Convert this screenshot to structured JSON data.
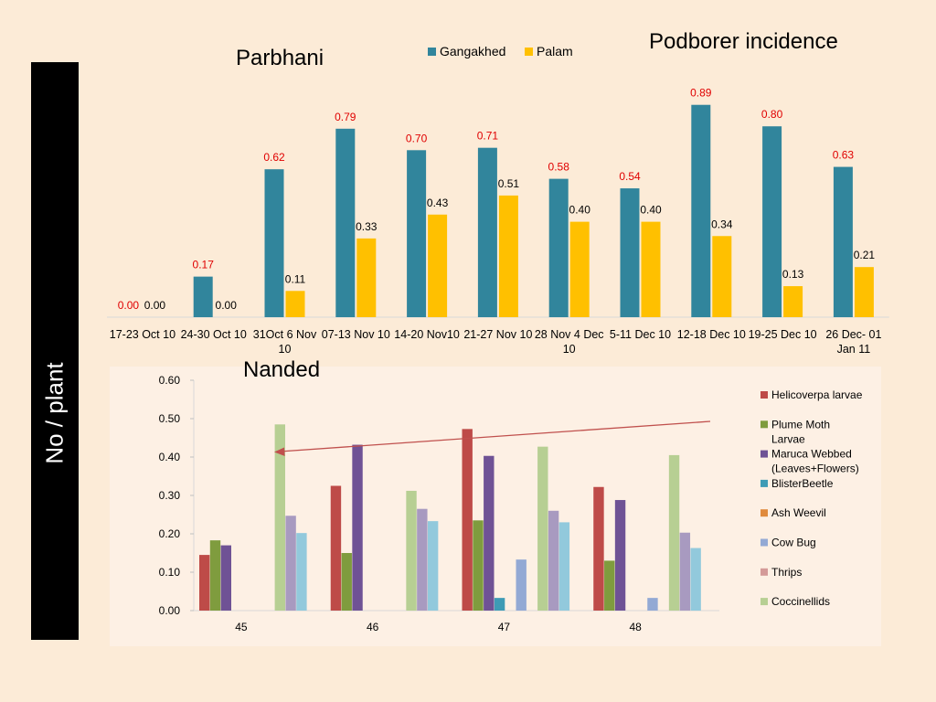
{
  "slide": {
    "title": "Podborer incidence",
    "side_label": "No  / plant"
  },
  "colors": {
    "gangakhed": "#31859c",
    "palam": "#ffc000",
    "value_label_highlight": "#e00000",
    "value_label_normal": "#000000"
  },
  "chart_data": [
    {
      "type": "bar",
      "title": "Parbhani",
      "legend_position": "top",
      "categories": [
        "17-23 Oct 10",
        "24-30 Oct 10",
        "31Oct 6 Nov 10",
        "07-13 Nov 10",
        "14-20 Nov10",
        "21-27 Nov 10",
        "28 Nov 4 Dec 10",
        "5-11 Dec 10",
        "12-18 Dec 10",
        "19-25 Dec 10",
        "26 Dec- 01 Jan 11"
      ],
      "category_lines": [
        [
          "17-23 Oct 10"
        ],
        [
          "24-30 Oct 10"
        ],
        [
          "31Oct 6 Nov",
          "10"
        ],
        [
          "07-13 Nov 10"
        ],
        [
          "14-20 Nov10"
        ],
        [
          "21-27 Nov 10"
        ],
        [
          "28 Nov 4 Dec",
          "10"
        ],
        [
          "5-11 Dec 10"
        ],
        [
          "12-18 Dec 10"
        ],
        [
          "19-25 Dec 10"
        ],
        [
          "26 Dec- 01",
          "Jan 11"
        ]
      ],
      "series": [
        {
          "name": "Gangakhed",
          "values": [
            0.0,
            0.17,
            0.62,
            0.79,
            0.7,
            0.71,
            0.58,
            0.54,
            0.89,
            0.8,
            0.63
          ],
          "labels": [
            "0.00",
            "0.17",
            "0.62",
            "0.79",
            "0.70",
            "0.71",
            "0.58",
            "0.54",
            "0.89",
            "0.80",
            "0.63"
          ]
        },
        {
          "name": "Palam",
          "values": [
            0.0,
            0.0,
            0.11,
            0.33,
            0.43,
            0.51,
            0.4,
            0.4,
            0.34,
            0.13,
            0.21
          ],
          "labels": [
            "0.00",
            "0.00",
            "0.11",
            "0.33",
            "0.43",
            "0.51",
            "0.40",
            "0.40",
            "0.34",
            "0.13",
            "0.21"
          ]
        }
      ],
      "ylim": [
        0,
        1.0
      ],
      "y_axis_shown": false,
      "grid": false
    },
    {
      "type": "bar",
      "title": "Nanded",
      "legend_position": "right",
      "categories": [
        "45",
        "46",
        "47",
        "48"
      ],
      "ylim": [
        0,
        0.6
      ],
      "yticks": [
        0.0,
        0.1,
        0.2,
        0.3,
        0.4,
        0.5,
        0.6
      ],
      "ytick_labels": [
        "0.00",
        "0.10",
        "0.20",
        "0.30",
        "0.40",
        "0.50",
        "0.60"
      ],
      "grid": false,
      "series": [
        {
          "name": "Helicoverpa larvae",
          "legend_lines": [
            "Helicoverpa larvae"
          ],
          "color": "#be4b48",
          "values": [
            0.145,
            0.325,
            0.473,
            0.322
          ]
        },
        {
          "name": "Plume Moth Larvae",
          "legend_lines": [
            "Plume Moth",
            "Larvae"
          ],
          "color": "#7f9c3e",
          "values": [
            0.183,
            0.15,
            0.235,
            0.13
          ]
        },
        {
          "name": "Maruca Webbed (Leaves+Flowers)",
          "legend_lines": [
            "Maruca Webbed",
            "(Leaves+Flowers)"
          ],
          "color": "#6f5295",
          "values": [
            0.17,
            0.432,
            0.403,
            0.288
          ]
        },
        {
          "name": "BlisterBeetle",
          "legend_lines": [
            "BlisterBeetle"
          ],
          "color": "#3e9bb5",
          "values": [
            0.0,
            0.0,
            0.033,
            0.0
          ]
        },
        {
          "name": "Ash Weevil",
          "legend_lines": [
            "Ash Weevil"
          ],
          "color": "#e08a3c",
          "values": [
            0.0,
            0.0,
            0.0,
            0.0
          ]
        },
        {
          "name": "Cow Bug",
          "legend_lines": [
            "Cow Bug"
          ],
          "color": "#93a9d4",
          "values": [
            0.0,
            0.0,
            0.133,
            0.033
          ]
        },
        {
          "name": "Thrips",
          "legend_lines": [
            "Thrips"
          ],
          "color": "#d49a98",
          "values": [
            0.0,
            0.0,
            0.0,
            0.0
          ]
        },
        {
          "name": "Coccinellids",
          "legend_lines": [
            "Coccinellids"
          ],
          "color": "#b7cf93",
          "values": [
            0.485,
            0.312,
            0.427,
            0.405
          ]
        },
        {
          "name": "",
          "legend_lines": [],
          "color": "#a89ac0",
          "values": [
            0.247,
            0.265,
            0.26,
            0.203
          ]
        },
        {
          "name": "",
          "legend_lines": [],
          "color": "#92c9dc",
          "values": [
            0.202,
            0.233,
            0.23,
            0.163
          ]
        }
      ],
      "annotation": {
        "type": "arrow",
        "color": "#c0504d",
        "from": "legend (right)",
        "to": "Coccinellids bar, week 45"
      }
    }
  ]
}
